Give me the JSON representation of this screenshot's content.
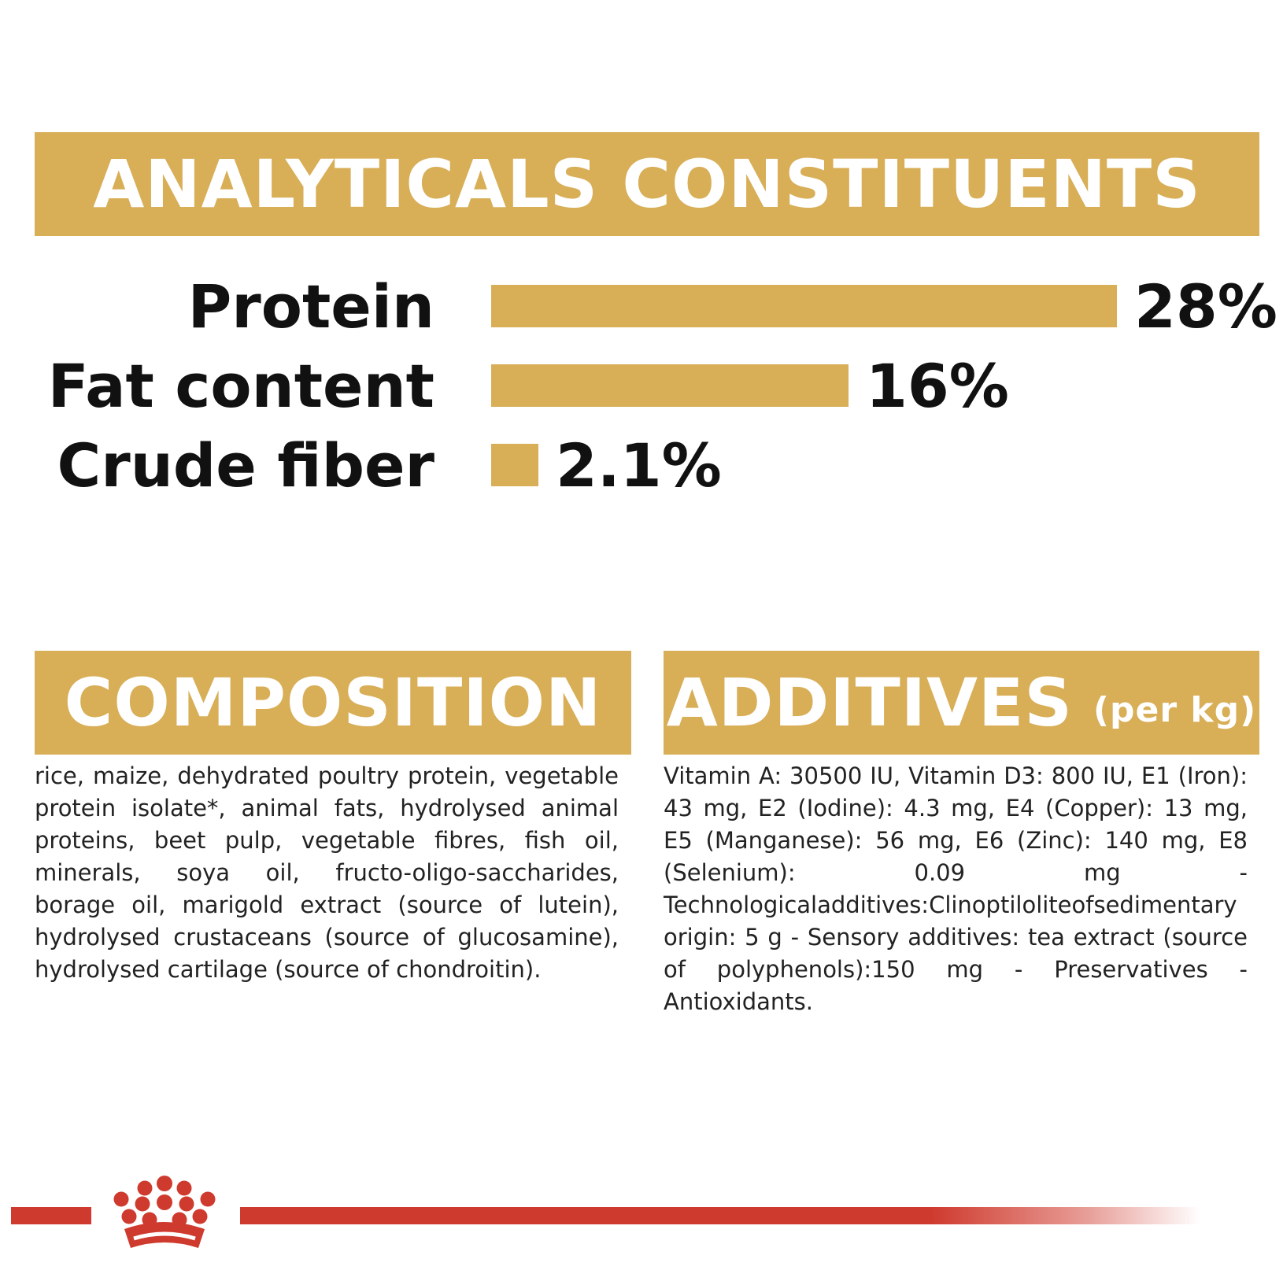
{
  "sections": {
    "analytical_title": "ANALYTICALS CONSTITUENTS",
    "composition_title": "COMPOSITION",
    "additives_title": "ADDITIVES",
    "additives_subtitle": "(per kg)"
  },
  "chart_data": {
    "type": "bar",
    "orientation": "horizontal",
    "categories": [
      "Protein",
      "Fat content",
      "Crude fiber"
    ],
    "values": [
      28,
      16,
      2.1
    ],
    "value_labels": [
      "28%",
      "16%",
      "2.1%"
    ],
    "unit": "%",
    "grid": false,
    "axes_visible": false,
    "bar_color": "#D8AE57"
  },
  "composition_text": "rice, maize, dehydrated poultry protein, vegetable protein isolate*, animal fats, hydrolysed animal proteins, beet pulp, vegetable fibres, fish oil, minerals, soya oil, fructo-oligo-saccharides, borage oil, marigold extract (source of lutein), hydrolysed crustaceans (source of glucosamine), hydrolysed cartilage (source of chondroitin).",
  "additives_text": "Vitamin A: 30500 IU, Vitamin D3: 800 IU, E1 (Iron): 43 mg, E2 (Iodine): 4.3 mg, E4 (Copper): 13 mg, E5 (Manganese): 56 mg, E6 (Zinc): 140 mg, E8 (Selenium): 0.09 mg - Technologicaladditives:Clinoptiloliteofsedimentary origin: 5 g - Sensory additives: tea extract (source of polyphenols):150 mg - Preservatives - Antioxidants.",
  "colors": {
    "banner": "#D8AE57",
    "bar": "#D8AE57",
    "brand_red": "#CF3A2E"
  },
  "icons": [
    "crown-logo-icon"
  ]
}
